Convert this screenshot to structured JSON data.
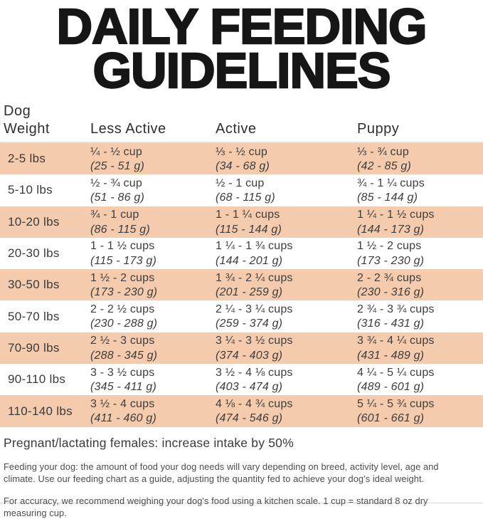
{
  "title": {
    "line1": "DAILY FEEDING",
    "line2": "GUIDELINES"
  },
  "colors": {
    "row_highlight": "#F5CBAE",
    "title_text": "#161616",
    "body_text": "#3D3D3D"
  },
  "table": {
    "headers": {
      "weight_line1": "Dog",
      "weight_line2": "Weight",
      "less_active": "Less Active",
      "active": "Active",
      "puppy": "Puppy"
    },
    "rows": [
      {
        "weight": "2-5 lbs",
        "less_active": {
          "cups": "¼ - ½ cup",
          "grams": "(25 - 51 g)"
        },
        "active": {
          "cups": "⅓ - ½ cup",
          "grams": "(34 - 68 g)"
        },
        "puppy": {
          "cups": "⅓ - ¾ cup",
          "grams": "(42 - 85 g)"
        }
      },
      {
        "weight": "5-10 lbs",
        "less_active": {
          "cups": "½ - ¾ cup",
          "grams": "(51 - 86 g)"
        },
        "active": {
          "cups": "½ - 1 cup",
          "grams": "(68 - 115 g)"
        },
        "puppy": {
          "cups": "¾ - 1 ¼ cups",
          "grams": "(85 - 144 g)"
        }
      },
      {
        "weight": "10-20 lbs",
        "less_active": {
          "cups": "¾ - 1 cup",
          "grams": "(86 - 115 g)"
        },
        "active": {
          "cups": "1 - 1 ¼ cups",
          "grams": "(115 - 144 g)"
        },
        "puppy": {
          "cups": "1 ¼ - 1 ½ cups",
          "grams": "(144 - 173 g)"
        }
      },
      {
        "weight": "20-30 lbs",
        "less_active": {
          "cups": "1 - 1 ½ cups",
          "grams": "(115 - 173 g)"
        },
        "active": {
          "cups": "1 ¼ - 1 ¾ cups",
          "grams": "(144 - 201 g)"
        },
        "puppy": {
          "cups": "1 ½ - 2 cups",
          "grams": "(173 - 230 g)"
        }
      },
      {
        "weight": "30-50 lbs",
        "less_active": {
          "cups": "1 ½ - 2 cups",
          "grams": "(173 - 230 g)"
        },
        "active": {
          "cups": "1 ¾ - 2 ¼ cups",
          "grams": "(201 - 259 g)"
        },
        "puppy": {
          "cups": "2 - 2 ¾ cups",
          "grams": "(230 - 316 g)"
        }
      },
      {
        "weight": "50-70 lbs",
        "less_active": {
          "cups": "2 - 2 ½ cups",
          "grams": "(230 - 288 g)"
        },
        "active": {
          "cups": "2 ¼ - 3 ¼ cups",
          "grams": "(259 - 374 g)"
        },
        "puppy": {
          "cups": "2 ¾ - 3 ¾ cups",
          "grams": "(316 - 431 g)"
        }
      },
      {
        "weight": "70-90 lbs",
        "less_active": {
          "cups": "2 ½ - 3 cups",
          "grams": "(288 - 345 g)"
        },
        "active": {
          "cups": "3 ¼ - 3 ½ cups",
          "grams": "(374 - 403 g)"
        },
        "puppy": {
          "cups": "3 ¾ - 4 ¼ cups",
          "grams": "(431 - 489 g)"
        }
      },
      {
        "weight": "90-110 lbs",
        "less_active": {
          "cups": "3 - 3 ½ cups",
          "grams": "(345 - 411 g)"
        },
        "active": {
          "cups": "3 ½ - 4 ⅛ cups",
          "grams": "(403 - 474 g)"
        },
        "puppy": {
          "cups": "4 ¼ - 5 ¼ cups",
          "grams": "(489 - 601 g)"
        }
      },
      {
        "weight": "110-140 lbs",
        "less_active": {
          "cups": "3 ½ - 4 cups",
          "grams": "(411 - 460 g)"
        },
        "active": {
          "cups": "4 ⅛ - 4 ¾ cups",
          "grams": "(474 - 546 g)"
        },
        "puppy": {
          "cups": "5 ¼ - 5 ¾ cups",
          "grams": "(601 - 661 g)"
        }
      }
    ]
  },
  "footer": {
    "note": "Pregnant/lactating females: increase intake by 50%",
    "para1": "Feeding your dog: the amount of food your dog needs will vary depending on breed, activity level, age and climate. Use our feeding chart as a guide, adjusting the quantity fed to achieve your dog's ideal weight.",
    "para2": "For accuracy, we recommend weighing your dog's food using a kitchen scale. 1 cup = standard 8 oz dry measuring cup."
  }
}
